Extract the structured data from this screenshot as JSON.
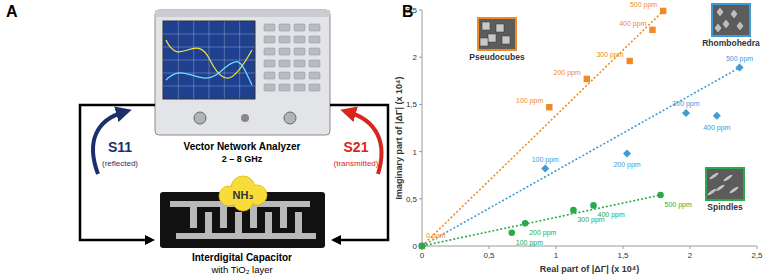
{
  "panel_a": {
    "label": "A",
    "analyzer": {
      "name": "Vector Network Analyzer",
      "band": "2 – 8 GHz"
    },
    "reflected": {
      "label": "S11",
      "note": "(reflected)"
    },
    "transmitted": {
      "label": "S21",
      "note": "(transmitted)"
    },
    "gas": "NH₃",
    "sensor": {
      "name": "Interdigital Capacitor",
      "note": "with TiO₂ layer"
    }
  },
  "chart_data": {
    "type": "scatter",
    "panel_label": "B",
    "x_label": "Real part of |ΔΓ| (x 10⁴)",
    "y_label": "Imaginary part of |ΔΓ| (x 10⁴)",
    "xlim": [
      0,
      2.5
    ],
    "ylim": [
      0,
      2.5
    ],
    "xticks": [
      0,
      {
        "value": 0.5,
        "label": "0,5"
      },
      1,
      {
        "value": 1.5,
        "label": "1,5"
      },
      2,
      {
        "value": 2.5,
        "label": "2,5"
      }
    ],
    "yticks": [
      0,
      {
        "value": 0.5,
        "label": "0,5"
      },
      1,
      {
        "value": 1.5,
        "label": "1,5"
      },
      2,
      {
        "value": 2.5,
        "label": "2,5"
      }
    ],
    "grid": false,
    "series": [
      {
        "name": "Pseudocubes",
        "color": "#f08a24",
        "marker": "square",
        "line_style": "dotted",
        "x": [
          0,
          0.95,
          1.23,
          1.55,
          1.72,
          1.8
        ],
        "values": [
          0,
          1.47,
          1.77,
          1.96,
          2.29,
          2.49
        ],
        "labels": [
          "0 ppm",
          "100 ppm",
          "200 ppm",
          "300 ppm",
          "400 ppm",
          "500 ppm"
        ]
      },
      {
        "name": "Rhombohedra",
        "color": "#3d9bd6",
        "marker": "diamond",
        "line_style": "dotted",
        "x": [
          0,
          0.92,
          1.53,
          1.97,
          2.2,
          2.37
        ],
        "values": [
          0,
          0.82,
          0.98,
          1.41,
          1.38,
          1.89
        ],
        "labels": [
          null,
          "100 ppm",
          "200 ppm",
          "300 ppm",
          "400 ppm",
          "500 ppm"
        ]
      },
      {
        "name": "Spindles",
        "color": "#2aaa4a",
        "marker": "circle",
        "line_style": "dotted",
        "x": [
          0,
          0.67,
          0.77,
          1.13,
          1.28,
          1.78
        ],
        "values": [
          0,
          0.14,
          0.24,
          0.38,
          0.43,
          0.54
        ],
        "labels": [
          null,
          "100 ppm",
          "200 ppm",
          "300 ppm",
          "400 ppm",
          "500 ppm"
        ]
      }
    ]
  }
}
